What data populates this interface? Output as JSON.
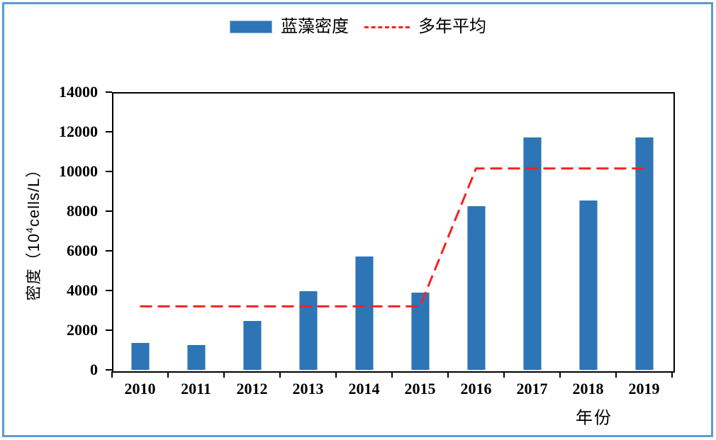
{
  "legend": {
    "bar_label": "蓝藻密度",
    "line_label": "多年平均"
  },
  "axes": {
    "y_title_prefix": "密度（10",
    "y_title_sup": "4",
    "y_title_suffix": "cells/L）",
    "x_title": "年份"
  },
  "colors": {
    "bar_fill": "#2E75B6",
    "bar_edge": "#86AFD9",
    "avg_line": "#F92121",
    "axis": "#000000",
    "frame_border": "#5B9BD5"
  },
  "chart_data": {
    "type": "bar",
    "categories": [
      "2010",
      "2011",
      "2012",
      "2013",
      "2014",
      "2015",
      "2016",
      "2017",
      "2018",
      "2019"
    ],
    "series": [
      {
        "name": "蓝藻密度",
        "type": "bar",
        "color": "#2E75B6",
        "values": [
          1350,
          1250,
          2450,
          3950,
          5700,
          3880,
          8250,
          11700,
          8550,
          11700
        ]
      },
      {
        "name": "多年平均",
        "type": "line",
        "style": "dashed",
        "color": "#F92121",
        "values": [
          3200,
          3200,
          3200,
          3200,
          3200,
          3200,
          10150,
          10150,
          10150,
          10150
        ]
      }
    ],
    "title": "",
    "xlabel": "年份",
    "ylabel": "密度（10⁴cells/L）",
    "ylim": [
      0,
      14000
    ],
    "y_tick_step": 2000,
    "y_ticks": [
      0,
      2000,
      4000,
      6000,
      8000,
      10000,
      12000,
      14000
    ],
    "grid": false,
    "legend_position": "top-center"
  }
}
